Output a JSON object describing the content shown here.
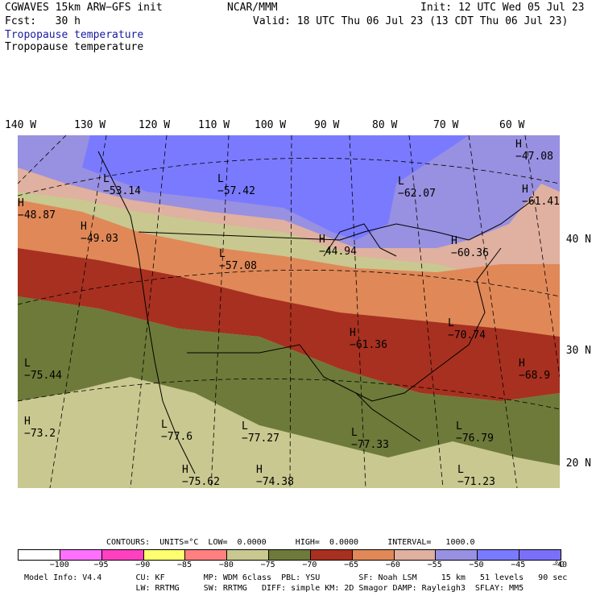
{
  "header": {
    "title_left": "CGWAVES 15km ARW−GFS init",
    "center": "NCAR/MMM",
    "init": "Init: 12 UTC Wed 05 Jul 23",
    "fcst": "Fcst:   30 h",
    "valid": "Valid: 18 UTC Thu 06 Jul 23 (13 CDT Thu 06 Jul 23)",
    "field_blue": "Tropopause temperature",
    "field_black": "Tropopause temperature"
  },
  "lon_labels": [
    "140 W",
    "130 W",
    "120 W",
    "110 W",
    "100 W",
    "90 W",
    "80 W",
    "70 W",
    "60 W"
  ],
  "lat_labels": [
    "40 N",
    "30 N",
    "20 N"
  ],
  "map_labels": [
    {
      "type": "L",
      "value": "−53.14"
    },
    {
      "type": "L",
      "value": "−57.42"
    },
    {
      "type": "L",
      "value": "−62.07"
    },
    {
      "type": "H",
      "value": "−47.08"
    },
    {
      "type": "H",
      "value": "−48.87"
    },
    {
      "type": "H",
      "value": "−49.03"
    },
    {
      "type": "H",
      "value": "−61.41"
    },
    {
      "type": "L",
      "value": "−57.08"
    },
    {
      "type": "H",
      "value": "−44.94"
    },
    {
      "type": "H",
      "value": "−60.36"
    },
    {
      "type": "H",
      "value": "−61.36"
    },
    {
      "type": "L",
      "value": "−70.74"
    },
    {
      "type": "H",
      "value": "−68.9"
    },
    {
      "type": "L",
      "value": "−75.44"
    },
    {
      "type": "H",
      "value": "−73.2"
    },
    {
      "type": "L",
      "value": "−77.6"
    },
    {
      "type": "L",
      "value": "−77.27"
    },
    {
      "type": "L",
      "value": "−77.33"
    },
    {
      "type": "L",
      "value": "−76.79"
    },
    {
      "type": "H",
      "value": "−75.62"
    },
    {
      "type": "H",
      "value": "−74.38"
    },
    {
      "type": "L",
      "value": "−71.23"
    }
  ],
  "contours": {
    "label": "CONTOURS:  UNITS=°C  LOW=  0.0000      HIGH=  0.0000      INTERVAL=   1000.0"
  },
  "colorbar": {
    "colors": [
      "#ffffff",
      "#ff70ff",
      "#ff40c0",
      "#ffff70",
      "#ff8080",
      "#c8c890",
      "#6e7a3a",
      "#a83020",
      "#e08858",
      "#e0b0a0",
      "#9890e0",
      "#7a7aff",
      "#7a70f8"
    ],
    "ticks": [
      "−100",
      "−95",
      "−90",
      "−85",
      "−80",
      "−75",
      "−70",
      "−65",
      "−60",
      "−55",
      "−50",
      "−45",
      "−40"
    ],
    "unit": "°C"
  },
  "footer": {
    "line1": "Model Info: V4.4       CU: KF        MP: WDM 6class  PBL: YSU        SF: Noah LSM     15 km   51 levels   90 sec",
    "line2": "                       LW: RRTMG     SW: RRTMG   DIFF: simple KM: 2D Smagor DAMP: Rayleigh3  SFLAY: MM5"
  }
}
